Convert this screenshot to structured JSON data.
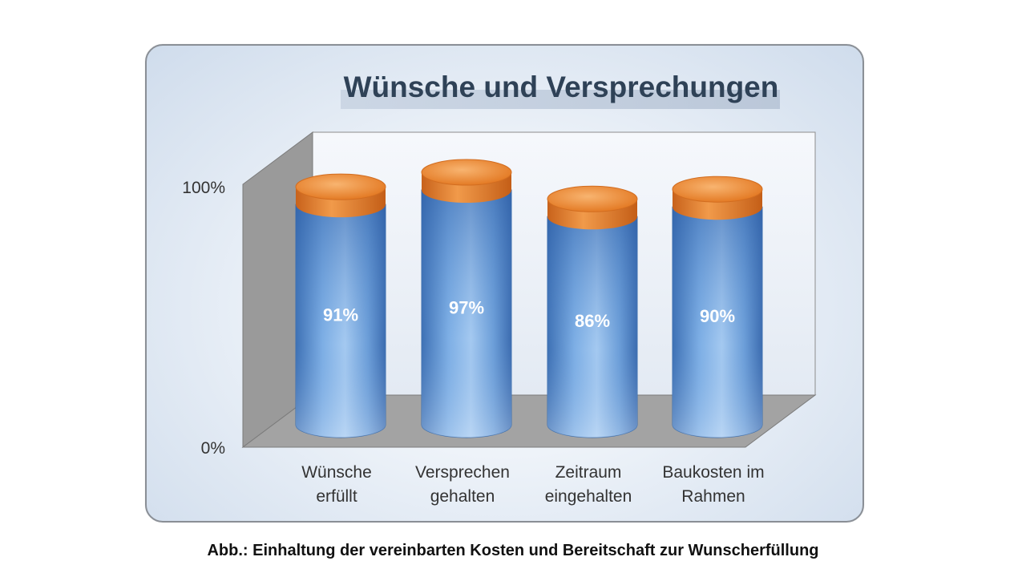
{
  "chart_data": {
    "type": "bar",
    "title": "Wünsche und Versprechungen",
    "categories": [
      [
        "Wünsche",
        "erfüllt"
      ],
      [
        "Versprechen",
        "gehalten"
      ],
      [
        "Zeitraum",
        "eingehalten"
      ],
      [
        "Baukosten im",
        "Rahmen"
      ]
    ],
    "series": [
      {
        "values": [
          91,
          97,
          86,
          90
        ]
      }
    ],
    "value_labels": [
      "91%",
      "97%",
      "86%",
      "90%"
    ],
    "yticks": [
      "0%",
      "100%"
    ],
    "ylim": [
      0,
      100
    ],
    "grid": false,
    "colors": {
      "body": "#5b8fd0",
      "cap": "#e87e2c",
      "wall": "#9a9a9a",
      "title": "#2f4257"
    }
  },
  "caption": "Abb.: Einhaltung der vereinbarten Kosten und Bereitschaft zur Wunscherfüllung"
}
